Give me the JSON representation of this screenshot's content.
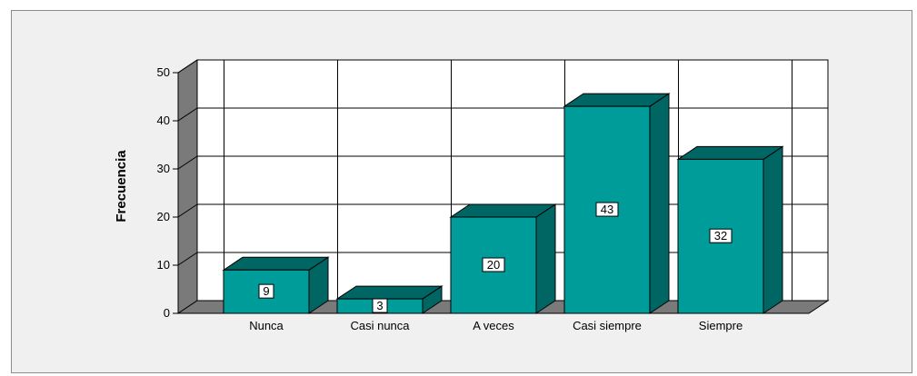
{
  "chart_data": {
    "type": "bar",
    "categories": [
      "Nunca",
      "Casi nunca",
      "A veces",
      "Casi siempre",
      "Siempre"
    ],
    "values": [
      9,
      3,
      20,
      43,
      32
    ],
    "ylabel": "Frecuencia",
    "xlabel": "",
    "ylim": [
      0,
      50
    ],
    "yticks": [
      0,
      10,
      20,
      30,
      40,
      50
    ],
    "grid": true,
    "legend": "none",
    "style": "3d",
    "colors": {
      "bar_front": "#009c9a",
      "bar_top": "#006664",
      "bar_side": "#006664",
      "wall": "#ffffff",
      "wall_side": "#7a7a7a",
      "floor": "#7a7a7a",
      "background": "#f0f0f0"
    }
  }
}
